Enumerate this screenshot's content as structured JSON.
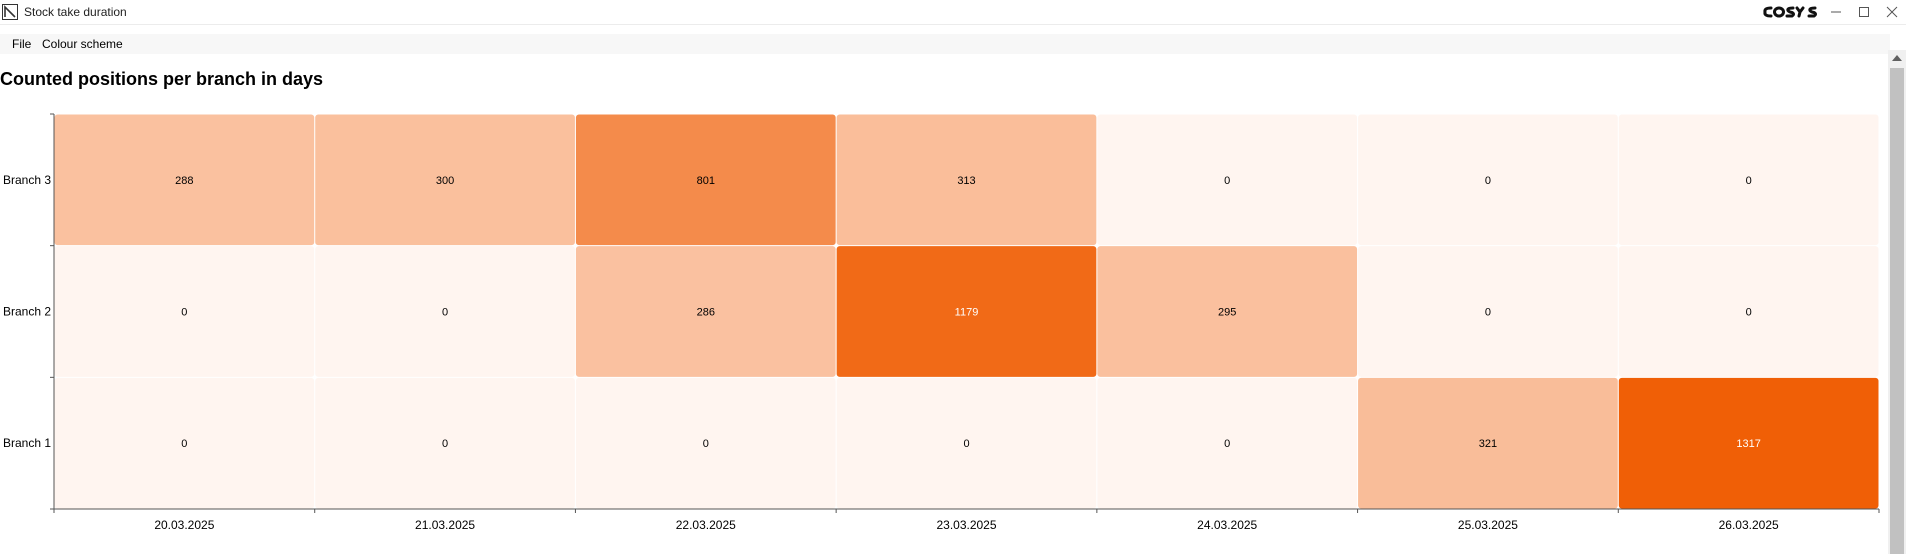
{
  "window": {
    "title": "Stock take duration",
    "brand_logo": "COSYS"
  },
  "menu": {
    "file_label": "File",
    "colour_scheme_label": "Colour scheme"
  },
  "chart_data": {
    "type": "heatmap",
    "title": "Counted positions per branch in days",
    "x_categories": [
      "20.03.2025",
      "21.03.2025",
      "22.03.2025",
      "23.03.2025",
      "24.03.2025",
      "25.03.2025",
      "26.03.2025"
    ],
    "y_categories": [
      "Branch 3",
      "Branch 2",
      "Branch 1"
    ],
    "values": [
      [
        288,
        300,
        801,
        313,
        0,
        0,
        0
      ],
      [
        0,
        0,
        286,
        1179,
        295,
        0,
        0
      ],
      [
        0,
        0,
        0,
        0,
        0,
        321,
        1317
      ]
    ],
    "color_scale": {
      "low": "#fff5f0",
      "high": "#f05f06"
    },
    "xlabel": "",
    "ylabel": "",
    "legend": "none",
    "grid": false
  }
}
